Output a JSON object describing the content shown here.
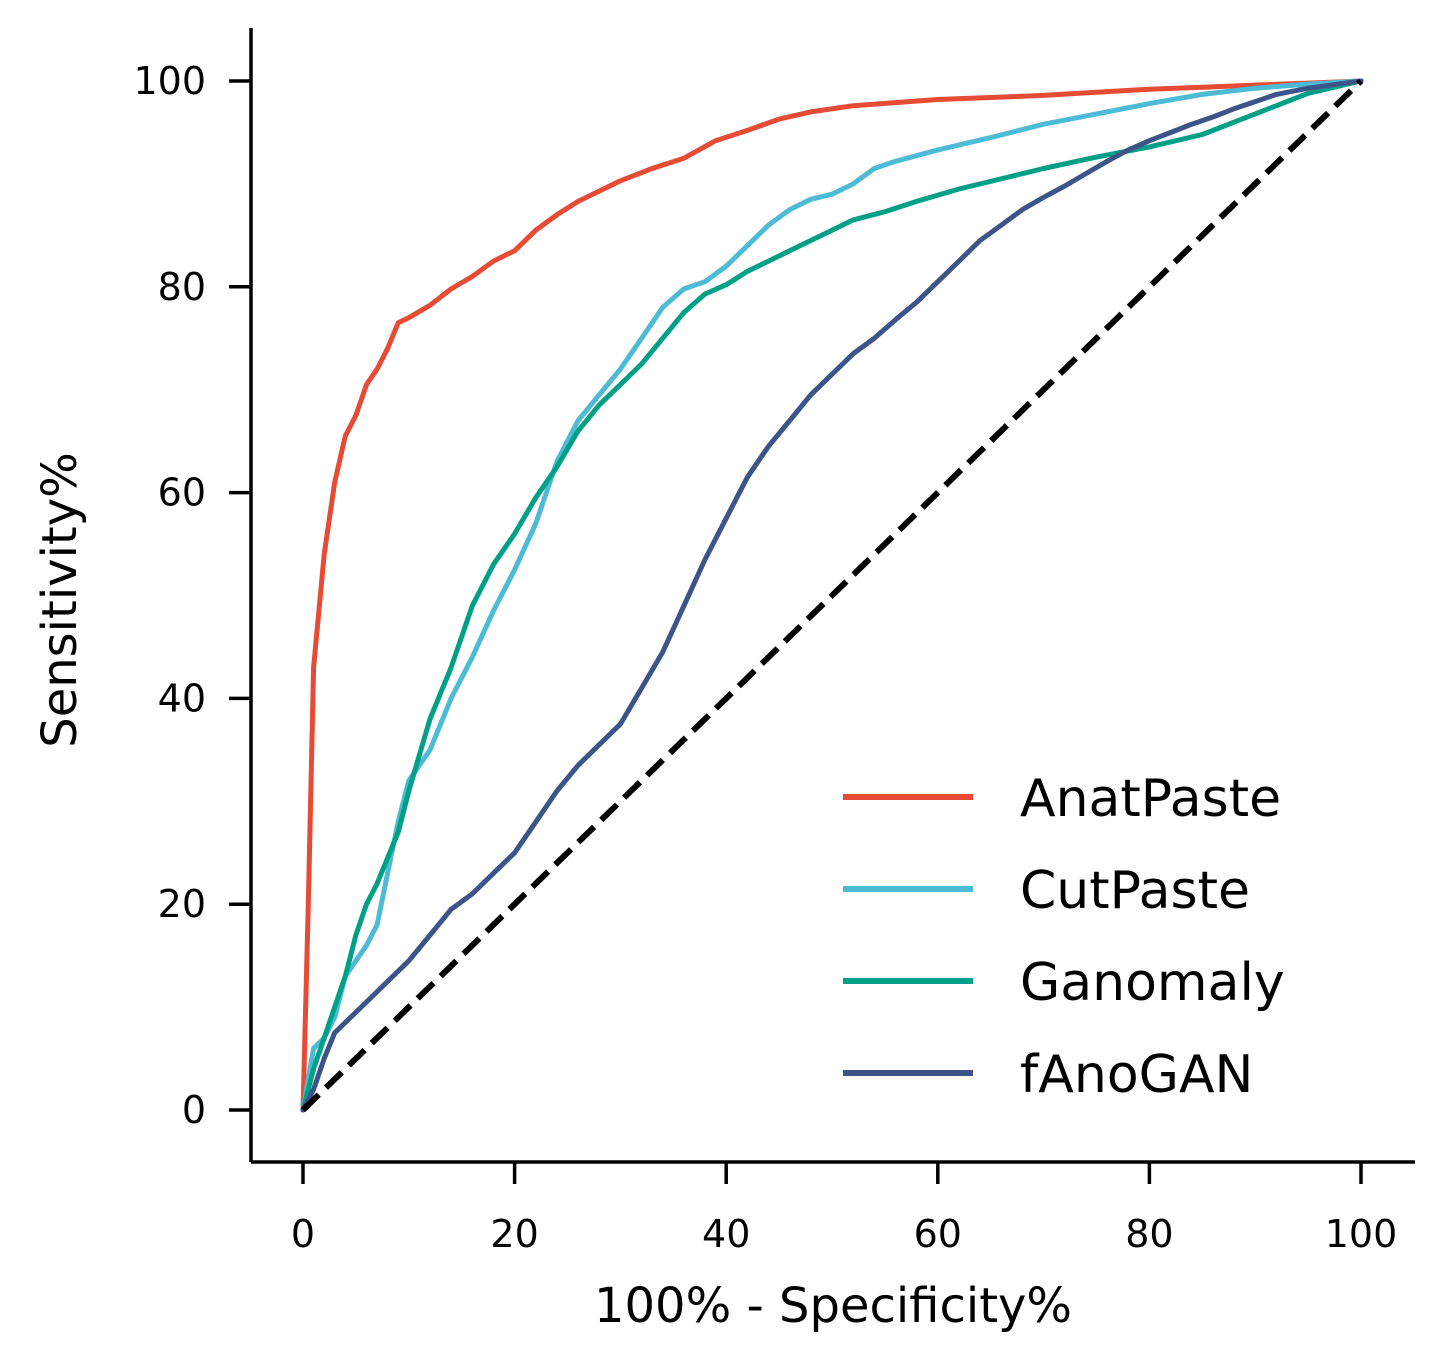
{
  "chart_data": {
    "type": "line",
    "title": "",
    "xlabel": "100% - Specificity%",
    "ylabel": "Sensitivity%",
    "xlim": [
      -5,
      105
    ],
    "ylim": [
      -5,
      105
    ],
    "xticks": [
      0,
      20,
      40,
      60,
      80,
      100
    ],
    "yticks": [
      0,
      20,
      40,
      60,
      80,
      100
    ],
    "xtick_labels": [
      "0",
      "20",
      "40",
      "60",
      "80",
      "100"
    ],
    "ytick_labels": [
      "0",
      "20",
      "40",
      "60",
      "80",
      "100"
    ],
    "grid": false,
    "legend_position": "lower-right",
    "series": [
      {
        "name": "AnatPaste",
        "color": "#E64B35",
        "x": [
          0,
          0.5,
          1,
          2,
          3,
          4,
          5,
          6,
          7,
          8,
          9,
          10,
          12,
          14,
          16,
          18,
          20,
          22,
          24,
          26,
          28,
          30,
          33,
          36,
          39,
          42,
          45,
          48,
          52,
          56,
          60,
          65,
          70,
          75,
          80,
          85,
          90,
          95,
          100
        ],
        "y": [
          0,
          20,
          43,
          54,
          61,
          65.5,
          67.5,
          70.5,
          72,
          74,
          76.5,
          77,
          78.2,
          79.8,
          81,
          82.5,
          83.5,
          85.5,
          87,
          88.3,
          89.3,
          90.3,
          91.5,
          92.5,
          94.2,
          95.2,
          96.3,
          97,
          97.6,
          97.9,
          98.2,
          98.4,
          98.6,
          98.9,
          99.2,
          99.4,
          99.6,
          99.8,
          100
        ]
      },
      {
        "name": "CutPaste",
        "color": "#4DBBD5",
        "x": [
          0,
          1,
          2,
          3,
          4,
          5,
          6,
          7,
          8,
          9,
          10,
          12,
          14,
          16,
          18,
          20,
          22,
          24,
          26,
          28,
          30,
          32,
          34,
          36,
          38,
          40,
          42,
          44,
          46,
          48,
          50,
          52,
          54,
          56,
          60,
          65,
          70,
          75,
          80,
          85,
          90,
          95,
          100
        ],
        "y": [
          0,
          6,
          7,
          9,
          13,
          14.5,
          16,
          18,
          23,
          28,
          32,
          35,
          40,
          44,
          48.5,
          52.5,
          57,
          63,
          67,
          69.5,
          72,
          75,
          78,
          79.8,
          80.5,
          82,
          84,
          86,
          87.5,
          88.5,
          89,
          90,
          91.5,
          92.2,
          93.3,
          94.5,
          95.8,
          96.8,
          97.8,
          98.7,
          99.3,
          99.7,
          100
        ]
      },
      {
        "name": "Ganomaly",
        "color": "#00A087",
        "x": [
          0,
          1,
          2,
          3,
          4,
          5,
          6,
          7,
          8,
          9,
          10,
          12,
          14,
          16,
          18,
          20,
          22,
          24,
          26,
          28,
          30,
          32,
          34,
          36,
          38,
          40,
          42,
          44,
          46,
          48,
          50,
          52,
          55,
          58,
          62,
          66,
          70,
          75,
          80,
          85,
          90,
          95,
          100
        ],
        "y": [
          0,
          4,
          7,
          10,
          13,
          17,
          20,
          22,
          24.5,
          27,
          31,
          38,
          43,
          49,
          53,
          56,
          59.5,
          62.5,
          66,
          68.5,
          70.5,
          72.5,
          75,
          77.5,
          79.3,
          80.2,
          81.5,
          82.5,
          83.5,
          84.5,
          85.5,
          86.5,
          87.3,
          88.3,
          89.5,
          90.5,
          91.5,
          92.6,
          93.6,
          94.8,
          96.8,
          98.8,
          100
        ]
      },
      {
        "name": "fAnoGAN",
        "color": "#3C5488",
        "x": [
          0,
          1,
          2,
          3,
          4,
          6,
          8,
          10,
          12,
          14,
          16,
          18,
          20,
          22,
          24,
          26,
          28,
          30,
          32,
          34,
          36,
          38,
          40,
          42,
          44,
          46,
          48,
          50,
          52,
          54,
          56,
          58,
          60,
          62,
          64,
          66,
          68,
          70,
          72,
          74,
          76,
          78,
          80,
          82,
          84,
          86,
          88,
          90,
          92,
          95,
          100
        ],
        "y": [
          0,
          2,
          5,
          7.5,
          8.5,
          10.5,
          12.5,
          14.5,
          17,
          19.5,
          21,
          23,
          25,
          28,
          31,
          33.5,
          35.5,
          37.5,
          41,
          44.5,
          49,
          53.5,
          57.5,
          61.5,
          64.5,
          67,
          69.5,
          71.5,
          73.5,
          75,
          76.8,
          78.5,
          80.5,
          82.5,
          84.5,
          86,
          87.5,
          88.7,
          89.8,
          91,
          92.2,
          93.3,
          94.2,
          95,
          95.8,
          96.5,
          97.3,
          98,
          98.7,
          99.3,
          100
        ]
      },
      {
        "name": "",
        "color": "#000000",
        "style": "dashed",
        "x": [
          0,
          100
        ],
        "y": [
          0,
          100
        ]
      }
    ]
  }
}
